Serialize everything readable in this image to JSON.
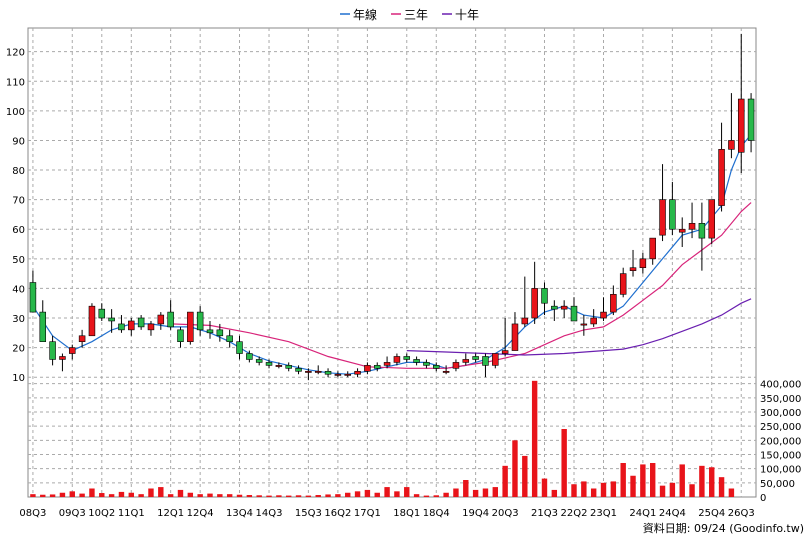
{
  "chart_data": {
    "type": "candlestick",
    "legend": [
      {
        "name": "年線",
        "color": "#1f6fcf"
      },
      {
        "name": "三年",
        "color": "#d8247a"
      },
      {
        "name": "十年",
        "color": "#6a1fb0"
      }
    ],
    "legend_position": "top-center",
    "grid": true,
    "price_axis": {
      "min": 5,
      "max": 128,
      "ticks": [
        10,
        20,
        30,
        40,
        50,
        60,
        70,
        80,
        90,
        100,
        110,
        120
      ]
    },
    "volume_axis": {
      "min": 0,
      "max": 420000,
      "ticks": [
        "0",
        "50,000",
        "100,000",
        "150,000",
        "200,000",
        "250,000",
        "300,000",
        "350,000",
        "400,000"
      ],
      "tick_values": [
        0,
        50000,
        100000,
        150000,
        200000,
        250000,
        300000,
        350000,
        400000
      ]
    },
    "x_ticks": [
      {
        "label": "08Q3",
        "i": 0
      },
      {
        "label": "09Q3",
        "i": 4
      },
      {
        "label": "10Q2",
        "i": 7
      },
      {
        "label": "11Q1",
        "i": 10
      },
      {
        "label": "12Q1",
        "i": 14
      },
      {
        "label": "12Q4",
        "i": 17
      },
      {
        "label": "13Q4",
        "i": 21
      },
      {
        "label": "14Q3",
        "i": 24
      },
      {
        "label": "15Q3",
        "i": 28
      },
      {
        "label": "16Q2",
        "i": 31
      },
      {
        "label": "17Q1",
        "i": 34
      },
      {
        "label": "18Q1",
        "i": 38
      },
      {
        "label": "18Q4",
        "i": 41
      },
      {
        "label": "19Q4",
        "i": 45
      },
      {
        "label": "20Q3",
        "i": 48
      },
      {
        "label": "21Q3",
        "i": 52
      },
      {
        "label": "22Q2",
        "i": 55
      },
      {
        "label": "23Q1",
        "i": 58
      },
      {
        "label": "24Q1",
        "i": 62
      },
      {
        "label": "24Q4",
        "i": 65
      },
      {
        "label": "25Q4",
        "i": 69
      },
      {
        "label": "26Q3",
        "i": 72
      }
    ],
    "candles": [
      [
        42,
        46,
        32,
        32
      ],
      [
        32,
        36,
        22,
        22
      ],
      [
        22,
        24,
        14,
        16
      ],
      [
        16,
        18,
        12,
        17
      ],
      [
        18,
        21,
        16,
        20
      ],
      [
        22,
        26,
        20,
        24
      ],
      [
        24,
        35,
        24,
        34
      ],
      [
        33,
        35,
        29,
        30
      ],
      [
        30,
        33,
        25,
        29
      ],
      [
        28,
        31,
        25,
        26
      ],
      [
        26,
        30,
        24,
        29
      ],
      [
        30,
        31,
        26,
        27
      ],
      [
        26,
        29,
        24,
        28
      ],
      [
        28,
        32,
        26,
        31
      ],
      [
        32,
        36,
        26,
        27
      ],
      [
        26,
        27,
        20,
        22
      ],
      [
        22,
        31,
        21,
        32
      ],
      [
        32,
        34,
        24,
        26
      ],
      [
        26,
        29,
        23,
        25
      ],
      [
        26,
        28,
        22,
        24
      ],
      [
        24,
        26,
        20,
        22
      ],
      [
        22,
        24,
        16,
        18
      ],
      [
        18,
        19,
        15,
        16
      ],
      [
        16,
        17,
        14,
        15
      ],
      [
        15,
        16,
        13,
        14
      ],
      [
        14,
        15,
        13,
        14
      ],
      [
        14,
        15,
        12,
        13
      ],
      [
        13,
        14,
        11,
        12
      ],
      [
        12,
        13,
        9,
        12
      ],
      [
        12,
        14,
        11,
        12
      ],
      [
        12,
        13,
        10,
        11
      ],
      [
        11,
        12,
        10,
        11
      ],
      [
        11,
        12,
        10,
        11
      ],
      [
        11,
        13,
        10,
        12
      ],
      [
        12,
        15,
        11,
        14
      ],
      [
        14,
        15,
        12,
        13
      ],
      [
        14,
        17,
        13,
        15
      ],
      [
        15,
        18,
        14,
        17
      ],
      [
        17,
        18,
        15,
        16
      ],
      [
        16,
        17,
        14,
        15
      ],
      [
        15,
        16,
        13,
        14
      ],
      [
        14,
        15,
        12,
        13
      ],
      [
        12,
        14,
        11,
        12
      ],
      [
        13,
        16,
        12,
        15
      ],
      [
        15,
        18,
        14,
        16
      ],
      [
        17,
        18,
        15,
        16
      ],
      [
        17,
        18,
        10,
        14
      ],
      [
        14,
        18,
        13,
        18
      ],
      [
        18,
        30,
        17,
        19
      ],
      [
        19,
        32,
        19,
        28
      ],
      [
        28,
        44,
        27,
        30
      ],
      [
        30,
        49,
        28,
        40
      ],
      [
        40,
        42,
        31,
        35
      ],
      [
        34,
        36,
        29,
        33
      ],
      [
        33,
        36,
        30,
        34
      ],
      [
        34,
        37,
        29,
        29
      ],
      [
        28,
        31,
        24,
        28
      ],
      [
        28,
        33,
        27,
        30
      ],
      [
        30,
        37,
        29,
        32
      ],
      [
        32,
        41,
        31,
        38
      ],
      [
        38,
        47,
        37,
        45
      ],
      [
        46,
        53,
        44,
        47
      ],
      [
        47,
        52,
        45,
        50
      ],
      [
        50,
        56,
        48,
        57
      ],
      [
        58,
        82,
        56,
        70
      ],
      [
        70,
        76,
        58,
        60
      ],
      [
        59,
        64,
        54,
        60
      ],
      [
        60,
        69,
        57,
        62
      ],
      [
        62,
        69,
        46,
        57
      ],
      [
        57,
        70,
        55,
        70
      ],
      [
        68,
        96,
        66,
        87
      ],
      [
        87,
        106,
        84,
        90
      ],
      [
        86,
        126,
        79,
        104
      ],
      [
        104,
        106,
        86,
        90
      ]
    ],
    "volume": [
      10000,
      8000,
      9000,
      15000,
      20000,
      12000,
      30000,
      14000,
      10000,
      18000,
      15000,
      10000,
      30000,
      35000,
      10000,
      25000,
      15000,
      10000,
      12000,
      10000,
      10000,
      8000,
      7000,
      6000,
      5000,
      6000,
      5000,
      6000,
      5000,
      7000,
      9000,
      10000,
      15000,
      20000,
      25000,
      15000,
      35000,
      20000,
      35000,
      10000,
      5000,
      6000,
      15000,
      30000,
      60000,
      25000,
      30000,
      35000,
      110000,
      200000,
      145000,
      410000,
      65000,
      25000,
      240000,
      45000,
      55000,
      30000,
      50000,
      55000,
      120000,
      75000,
      115000,
      120000,
      40000,
      50000,
      115000,
      45000,
      110000,
      105000,
      70000,
      30000,
      0,
      0
    ],
    "year_line": [
      [
        0,
        34
      ],
      [
        2,
        24
      ],
      [
        4,
        19
      ],
      [
        6,
        22
      ],
      [
        8,
        26
      ],
      [
        10,
        28
      ],
      [
        12,
        28
      ],
      [
        14,
        27
      ],
      [
        16,
        27
      ],
      [
        18,
        25
      ],
      [
        20,
        22
      ],
      [
        22,
        18
      ],
      [
        24,
        15.5
      ],
      [
        26,
        14
      ],
      [
        28,
        12.5
      ],
      [
        30,
        11.5
      ],
      [
        32,
        11
      ],
      [
        34,
        12
      ],
      [
        36,
        13.5
      ],
      [
        38,
        15
      ],
      [
        40,
        15
      ],
      [
        42,
        13
      ],
      [
        44,
        14
      ],
      [
        46,
        16
      ],
      [
        48,
        20
      ],
      [
        50,
        27
      ],
      [
        52,
        32
      ],
      [
        54,
        34
      ],
      [
        56,
        31
      ],
      [
        58,
        30
      ],
      [
        60,
        34
      ],
      [
        62,
        42
      ],
      [
        64,
        50
      ],
      [
        66,
        58
      ],
      [
        68,
        60
      ],
      [
        70,
        68
      ],
      [
        71,
        80
      ],
      [
        72,
        88
      ],
      [
        73,
        92
      ]
    ],
    "three_year_line": [
      [
        14,
        28
      ],
      [
        18,
        27.5
      ],
      [
        22,
        25
      ],
      [
        26,
        22
      ],
      [
        30,
        17
      ],
      [
        34,
        13.5
      ],
      [
        38,
        13
      ],
      [
        42,
        13
      ],
      [
        46,
        15
      ],
      [
        50,
        18
      ],
      [
        54,
        24
      ],
      [
        56,
        26
      ],
      [
        58,
        27
      ],
      [
        60,
        31
      ],
      [
        62,
        36
      ],
      [
        64,
        41
      ],
      [
        66,
        48
      ],
      [
        68,
        53
      ],
      [
        70,
        58
      ],
      [
        72,
        66
      ],
      [
        73,
        69
      ]
    ],
    "ten_year_line": [
      [
        38,
        19
      ],
      [
        42,
        18.5
      ],
      [
        46,
        18
      ],
      [
        50,
        17.5
      ],
      [
        54,
        18
      ],
      [
        58,
        19
      ],
      [
        60,
        19.5
      ],
      [
        62,
        21
      ],
      [
        64,
        23
      ],
      [
        66,
        25.5
      ],
      [
        68,
        28
      ],
      [
        70,
        31
      ],
      [
        72,
        35
      ],
      [
        73,
        36.5
      ]
    ]
  },
  "source_label": "資料日期: 09/24  (Goodinfo.tw)"
}
